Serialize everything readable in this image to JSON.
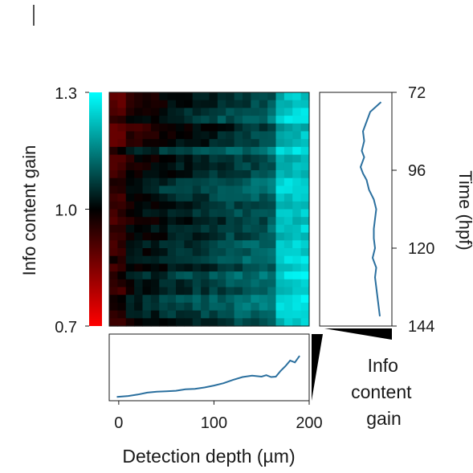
{
  "chart_data": [
    {
      "type": "heatmap",
      "title": "",
      "xlabel": "Detection depth (µm)",
      "ylabel": "Time (hpf)",
      "x_range": [
        0,
        200
      ],
      "y_range": [
        72,
        144
      ],
      "colorscale": [
        "#ff0000",
        "#000000",
        "#00ffff"
      ],
      "colorbar": {
        "label": "Info content gain",
        "range": [
          0.7,
          1.3
        ],
        "ticks": [
          "1.3",
          "1.0",
          "0.7"
        ],
        "tick_values": [
          1.3,
          1.0,
          0.7
        ]
      },
      "description_grid_rows": 30,
      "description_grid_cols": 24
    },
    {
      "type": "line",
      "title": "",
      "xlabel": "Detection depth (µm)",
      "ylabel": "",
      "x_ticks": [
        "0",
        "100",
        "200"
      ],
      "x_tick_values": [
        0,
        100,
        200
      ],
      "xlim": [
        -10,
        200
      ],
      "ylim": [
        0.7,
        1.3
      ],
      "color": "#2a6f9e",
      "x": [
        -2,
        10,
        20,
        30,
        40,
        50,
        60,
        70,
        80,
        90,
        100,
        110,
        120,
        130,
        140,
        145,
        150,
        155,
        160,
        165,
        170,
        175,
        180,
        185,
        190
      ],
      "y": [
        0.715,
        0.725,
        0.74,
        0.76,
        0.77,
        0.775,
        0.78,
        0.795,
        0.8,
        0.815,
        0.835,
        0.86,
        0.895,
        0.925,
        0.94,
        0.935,
        0.93,
        0.945,
        0.925,
        0.93,
        0.99,
        1.04,
        1.1,
        1.08,
        1.15
      ]
    },
    {
      "type": "line",
      "title": "",
      "xlabel": "Info content gain",
      "ylabel": "Time (hpf)",
      "y_ticks": [
        "72",
        "96",
        "120",
        "144"
      ],
      "y_tick_values": [
        72,
        96,
        120,
        144
      ],
      "ylim": [
        72,
        144
      ],
      "xlim": [
        0.7,
        1.3
      ],
      "color": "#2a6f9e",
      "y": [
        75,
        78,
        81,
        84,
        87,
        90,
        92,
        95,
        97,
        99,
        102,
        105,
        108,
        111,
        114,
        117,
        120,
        123,
        126,
        129,
        132,
        135,
        138,
        141
      ],
      "x": [
        1.21,
        1.12,
        1.09,
        1.06,
        1.07,
        1.05,
        1.07,
        1.04,
        1.06,
        1.09,
        1.11,
        1.15,
        1.17,
        1.16,
        1.15,
        1.15,
        1.16,
        1.14,
        1.17,
        1.16,
        1.17,
        1.18,
        1.19,
        1.2
      ]
    }
  ]
}
